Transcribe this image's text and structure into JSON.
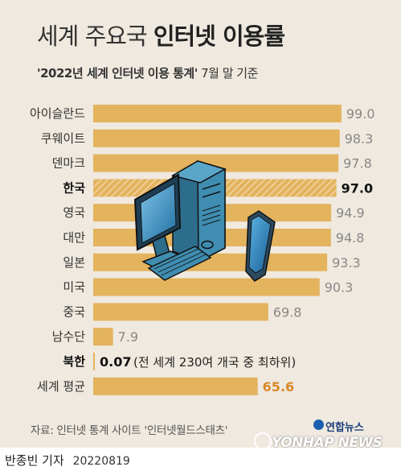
{
  "header": {
    "title_light": "세계 주요국",
    "title_bold": "인터넷 이용률",
    "subtitle_bold": "'2022년 세계 인터넷 이용 통계'",
    "subtitle_rest": "7월 말 기준"
  },
  "footer": {
    "source": "자료: 인터넷 통계 사이트 '인터넷월드스태츠'",
    "logo_kr": "연합뉴스",
    "logo_en": "YONHAP NEWS",
    "byline": "반종빈 기자",
    "date": "20220819"
  },
  "colors": {
    "bar": "#e3b35e",
    "bar_highlight": "#e3b35e",
    "world_value": "#d88a2a",
    "value_text": "#888888",
    "highlight_text": "#111111"
  },
  "chart_data": {
    "type": "bar",
    "orientation": "horizontal",
    "xlim": [
      0,
      100
    ],
    "categories": [
      "아이슬란드",
      "쿠웨이트",
      "덴마크",
      "한국",
      "영국",
      "대만",
      "일본",
      "미국",
      "중국",
      "남수단",
      "북한",
      "세계 평균"
    ],
    "values": [
      99.0,
      98.3,
      97.8,
      97.0,
      94.9,
      94.8,
      93.3,
      90.3,
      69.8,
      7.9,
      0.07,
      65.6
    ],
    "value_labels": [
      "99.0",
      "98.3",
      "97.8",
      "97.0",
      "94.9",
      "94.8",
      "93.3",
      "90.3",
      "69.8",
      "7.9",
      "0.07",
      "65.6"
    ],
    "highlight": [
      "한국",
      "북한"
    ],
    "annotations": [
      {
        "category": "북한",
        "text": "(전 세계 230여 개국 중 최하위)"
      }
    ]
  },
  "illustration": {
    "icons": [
      "desktop-computer-icon",
      "smartphone-icon"
    ]
  }
}
